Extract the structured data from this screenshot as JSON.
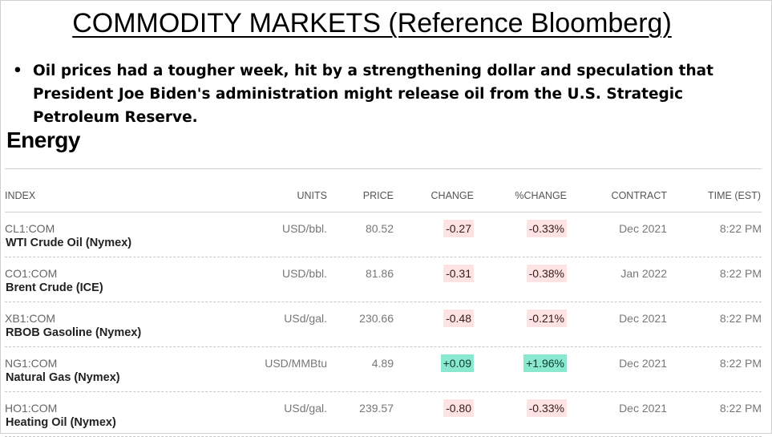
{
  "slide": {
    "title": "COMMODITY MARKETS (Reference Bloomberg)",
    "bullet_symbol": "•",
    "bullet_text": "Oil prices had a tougher week, hit by a strengthening dollar and speculation that President Joe Biden's administration might release oil from the U.S. Strategic Petroleum Reserve."
  },
  "section": {
    "heading": "Energy"
  },
  "table": {
    "headers": {
      "index": "INDEX",
      "units": "UNITS",
      "price": "PRICE",
      "change": "CHANGE",
      "pct_change": "%CHANGE",
      "contract": "CONTRACT",
      "time": "TIME (EST)"
    },
    "rows": [
      {
        "code": "CL1:COM",
        "name": "WTI Crude Oil (Nymex)",
        "units": "USD/bbl.",
        "price": "80.52",
        "change": "-0.27",
        "pct_change": "-0.33%",
        "contract": "Dec 2021",
        "time": "8:22 PM",
        "direction": "neg"
      },
      {
        "code": "CO1:COM",
        "name": "Brent Crude (ICE)",
        "units": "USD/bbl.",
        "price": "81.86",
        "change": "-0.31",
        "pct_change": "-0.38%",
        "contract": "Jan 2022",
        "time": "8:22 PM",
        "direction": "neg"
      },
      {
        "code": "XB1:COM",
        "name": "RBOB Gasoline (Nymex)",
        "units": "USd/gal.",
        "price": "230.66",
        "change": "-0.48",
        "pct_change": "-0.21%",
        "contract": "Dec 2021",
        "time": "8:22 PM",
        "direction": "neg"
      },
      {
        "code": "NG1:COM",
        "name": "Natural Gas (Nymex)",
        "units": "USD/MMBtu",
        "price": "4.89",
        "change": "+0.09",
        "pct_change": "+1.96%",
        "contract": "Dec 2021",
        "time": "8:22 PM",
        "direction": "pos"
      },
      {
        "code": "HO1:COM",
        "name": "Heating Oil (Nymex)",
        "units": "USd/gal.",
        "price": "239.57",
        "change": "-0.80",
        "pct_change": "-0.33%",
        "contract": "Dec 2021",
        "time": "8:22 PM",
        "direction": "neg"
      }
    ]
  },
  "colors": {
    "negative_bg": "#fde3e3",
    "positive_bg": "#8ae8d0"
  }
}
